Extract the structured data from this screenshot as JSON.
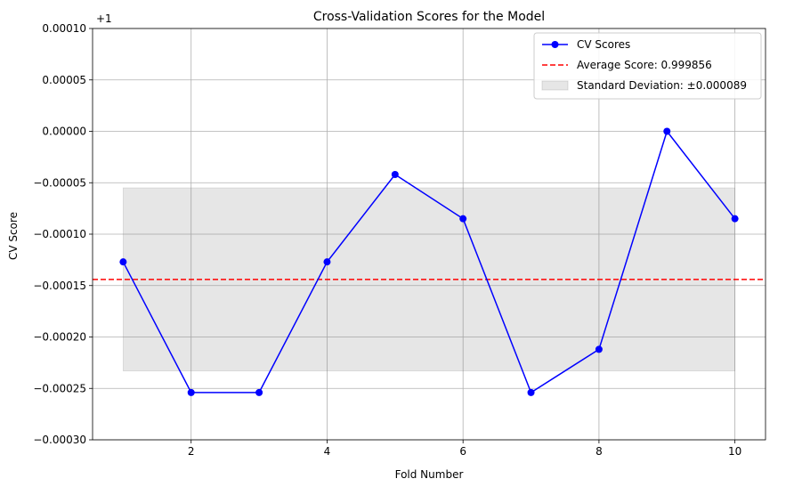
{
  "chart_data": {
    "type": "line",
    "title": "Cross-Validation Scores for the Model",
    "xlabel": "Fold Number",
    "ylabel": "CV Score",
    "y_offset_label": "+1",
    "x": [
      1,
      2,
      3,
      4,
      5,
      6,
      7,
      8,
      9,
      10
    ],
    "xlim": [
      0.55,
      10.45
    ],
    "ylim": [
      -0.0003,
      0.0001
    ],
    "x_ticks": [
      2,
      4,
      6,
      8,
      10
    ],
    "y_ticks": [
      -0.0003,
      -0.00025,
      -0.0002,
      -0.00015,
      -0.0001,
      -5e-05,
      0.0,
      5e-05,
      0.0001
    ],
    "y_tick_labels": [
      "−0.00030",
      "−0.00025",
      "−0.00020",
      "−0.00015",
      "−0.00010",
      "−0.00005",
      "0.00000",
      "0.00005",
      "0.00010"
    ],
    "grid": true,
    "legend_position": "top-right",
    "series": [
      {
        "name": "CV Scores",
        "kind": "line-marker",
        "color": "#0000ff",
        "values": [
          -0.000127,
          -0.000254,
          -0.000254,
          -0.000127,
          -4.2e-05,
          -8.5e-05,
          -0.000254,
          -0.000212,
          0.0,
          -8.5e-05
        ]
      }
    ],
    "average": {
      "name": "Average Score: 0.999856",
      "value": -0.000144,
      "color": "#ff0000"
    },
    "std_band": {
      "name": "Standard Deviation: ±0.000089",
      "lower": -0.000233,
      "upper": -5.5e-05,
      "x_range": [
        1,
        10
      ],
      "color": "#808080"
    }
  }
}
